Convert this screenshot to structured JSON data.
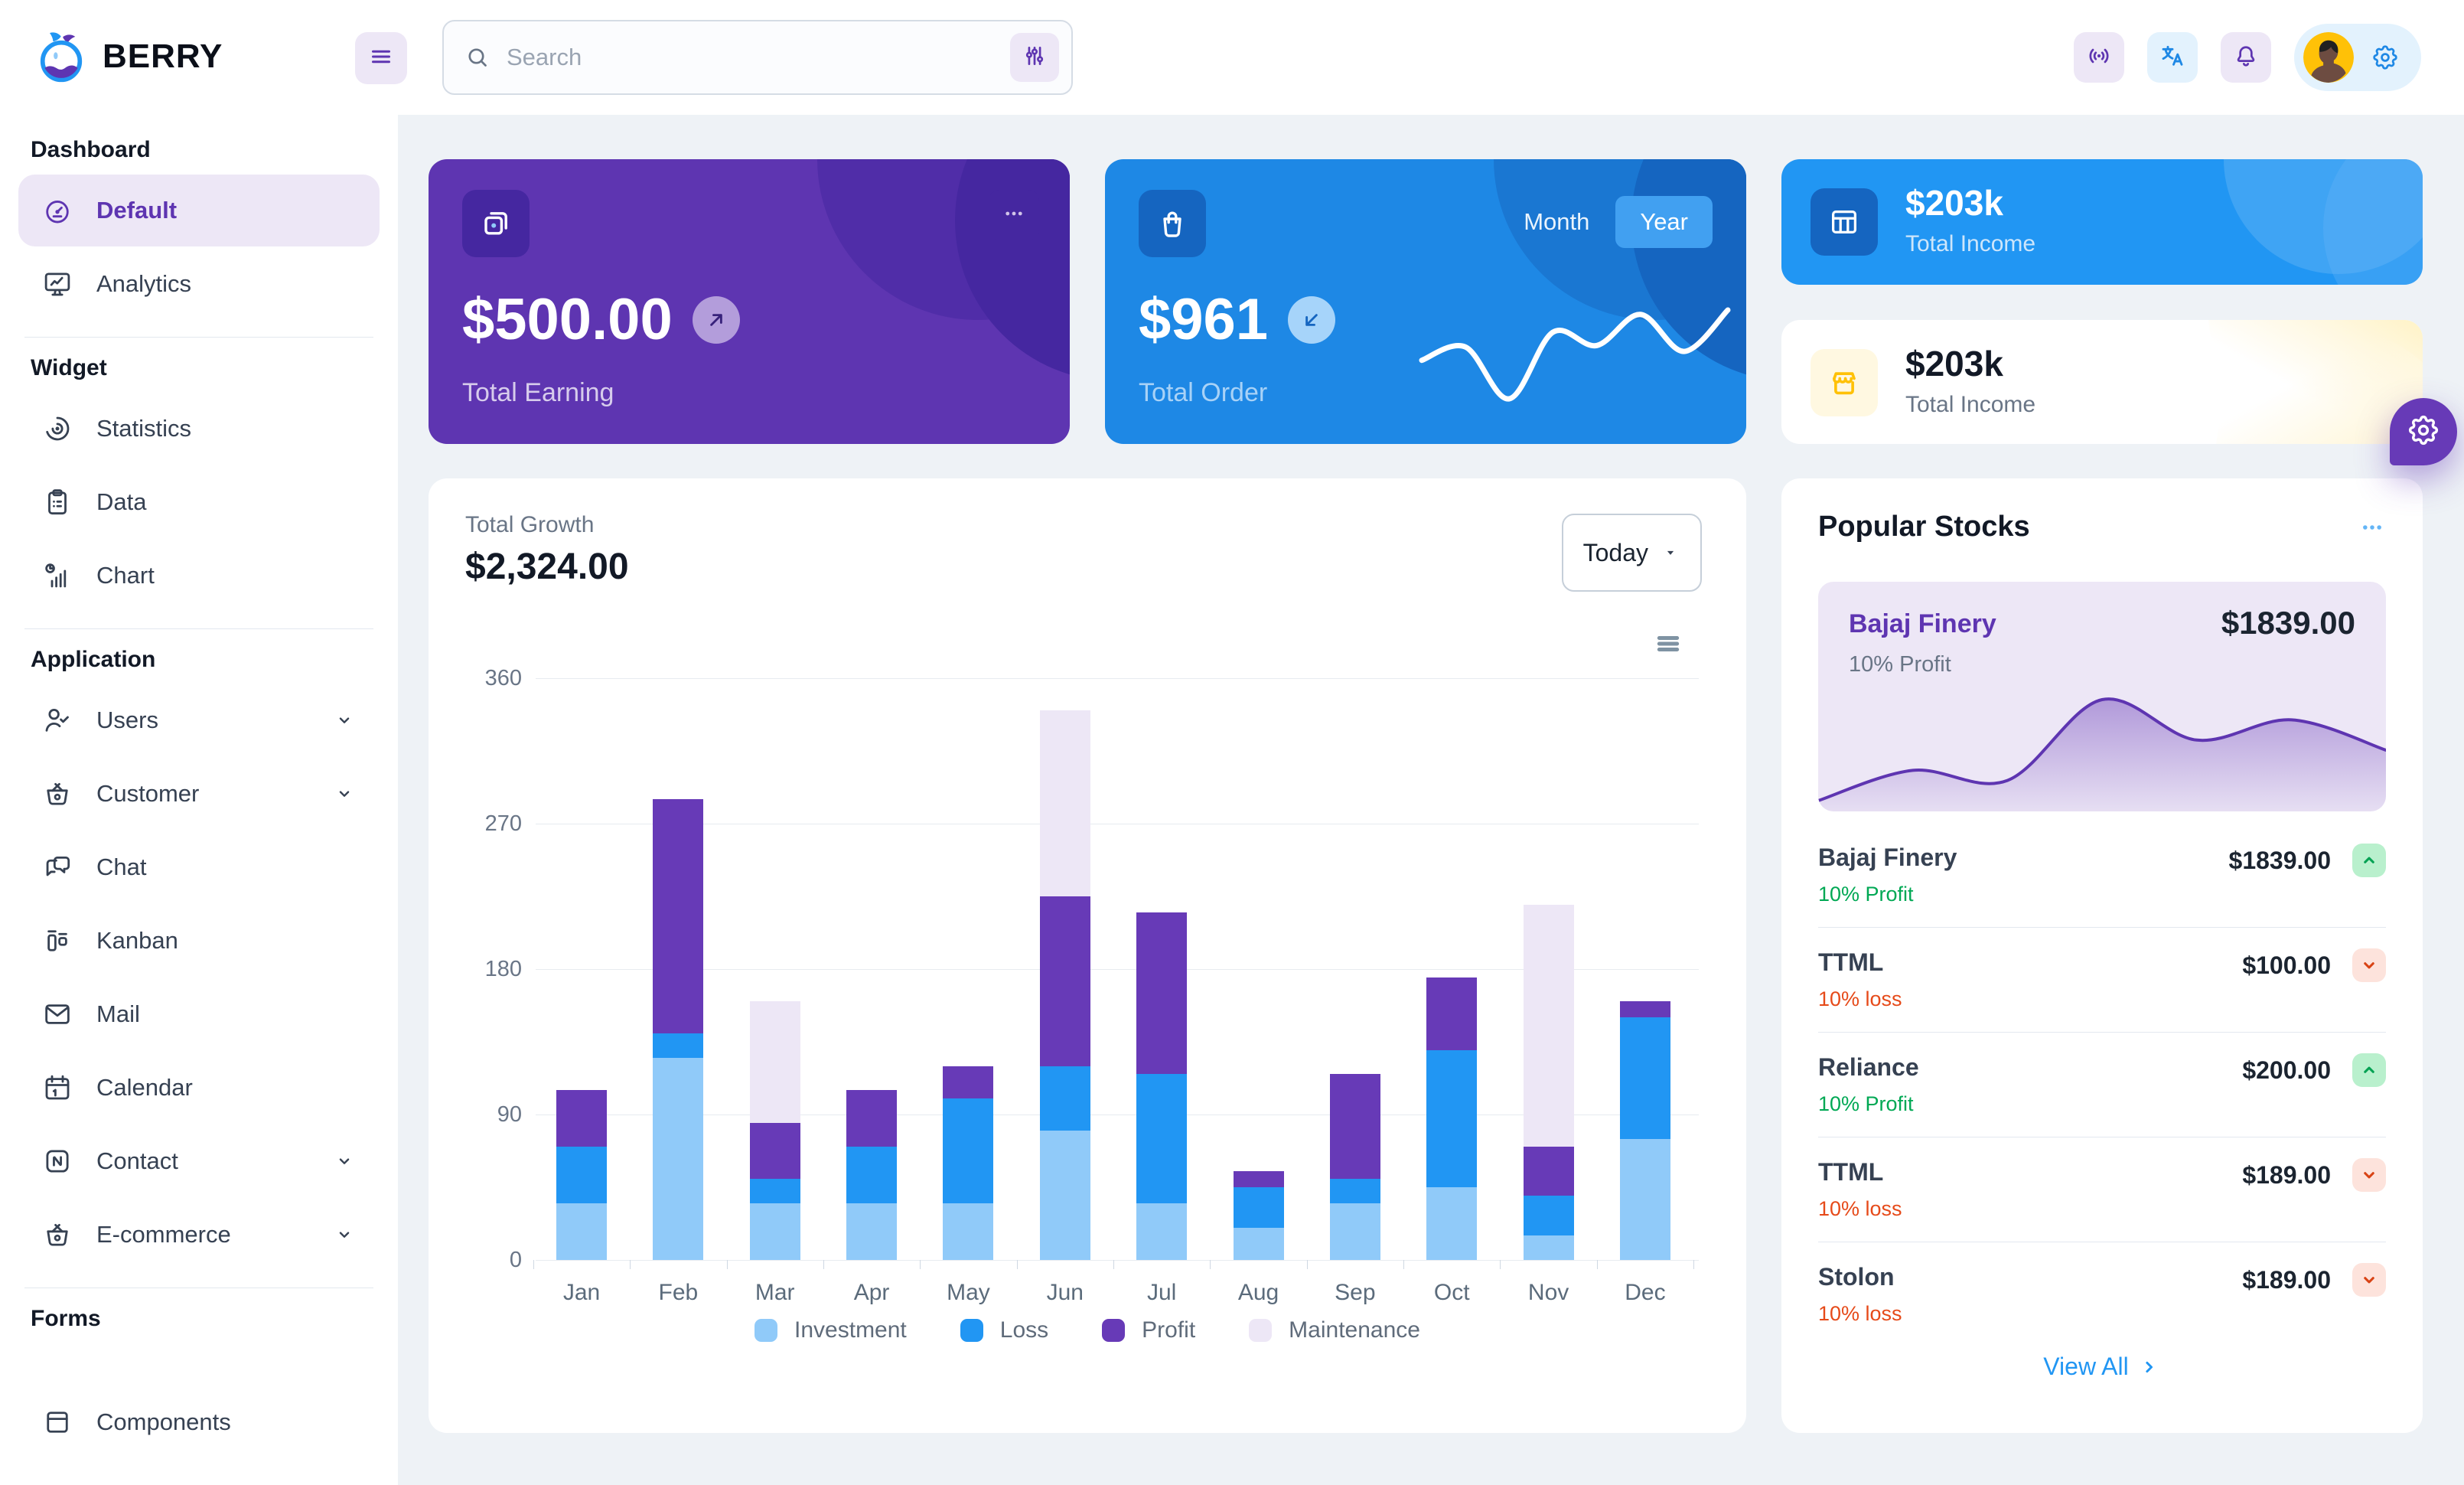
{
  "app": {
    "name": "BERRY"
  },
  "header": {
    "search_placeholder": "Search",
    "action_icons": [
      "menu",
      "search",
      "adjustments",
      "broadcast",
      "language",
      "bell",
      "avatar",
      "settings"
    ]
  },
  "sidebar": {
    "sections": [
      {
        "title": "Dashboard",
        "items": [
          {
            "id": "default",
            "label": "Default",
            "icon": "gauge",
            "selected": true
          },
          {
            "id": "analytics",
            "label": "Analytics",
            "icon": "monitor"
          }
        ]
      },
      {
        "title": "Widget",
        "items": [
          {
            "id": "statistics",
            "label": "Statistics",
            "icon": "disc"
          },
          {
            "id": "data",
            "label": "Data",
            "icon": "clipboard"
          },
          {
            "id": "chart",
            "label": "Chart",
            "icon": "chartbars"
          }
        ]
      },
      {
        "title": "Application",
        "items": [
          {
            "id": "users",
            "label": "Users",
            "icon": "usercheck",
            "chevron": true
          },
          {
            "id": "customer",
            "label": "Customer",
            "icon": "basket",
            "chevron": true
          },
          {
            "id": "chat",
            "label": "Chat",
            "icon": "chat"
          },
          {
            "id": "kanban",
            "label": "Kanban",
            "icon": "kanban"
          },
          {
            "id": "mail",
            "label": "Mail",
            "icon": "mail"
          },
          {
            "id": "calendar",
            "label": "Calendar",
            "icon": "calendar"
          },
          {
            "id": "contact",
            "label": "Contact",
            "icon": "nfc",
            "chevron": true
          },
          {
            "id": "e-commerce",
            "label": "E-commerce",
            "icon": "basket",
            "chevron": true
          }
        ]
      },
      {
        "title": "Forms",
        "items": [
          {
            "id": "components",
            "label": "Components",
            "icon": "box",
            "partial": true
          }
        ]
      }
    ]
  },
  "cards": {
    "earning": {
      "value": "$500.00",
      "label": "Total Earning"
    },
    "order": {
      "value": "$961",
      "label": "Total Order",
      "toggle_month": "Month",
      "toggle_year": "Year",
      "active_toggle": "Year",
      "sparkline": [
        35,
        44,
        9,
        54,
        45,
        66,
        41,
        69
      ]
    },
    "income_dark": {
      "value": "$203k",
      "label": "Total Income"
    },
    "income_light": {
      "value": "$203k",
      "label": "Total Income"
    }
  },
  "growth": {
    "label": "Total Growth",
    "value": "$2,324.00",
    "period": "Today"
  },
  "chart_data": {
    "type": "bar",
    "stacked": true,
    "title": "Total Growth",
    "categories": [
      "Jan",
      "Feb",
      "Mar",
      "Apr",
      "May",
      "Jun",
      "Jul",
      "Aug",
      "Sep",
      "Oct",
      "Nov",
      "Dec"
    ],
    "series": [
      {
        "name": "Investment",
        "color": "#90caf9",
        "values": [
          35,
          125,
          35,
          35,
          35,
          80,
          35,
          20,
          35,
          45,
          15,
          75
        ]
      },
      {
        "name": "Loss",
        "color": "#2196f3",
        "values": [
          35,
          15,
          15,
          35,
          65,
          40,
          80,
          25,
          15,
          85,
          25,
          75
        ]
      },
      {
        "name": "Profit",
        "color": "#673ab7",
        "values": [
          35,
          145,
          35,
          35,
          20,
          105,
          100,
          10,
          65,
          45,
          30,
          10
        ]
      },
      {
        "name": "Maintenance",
        "color": "#ede7f6",
        "values": [
          0,
          0,
          75,
          0,
          0,
          115,
          0,
          0,
          0,
          0,
          150,
          0
        ]
      }
    ],
    "ylim": [
      0,
      360
    ],
    "yticks": [
      0,
      90,
      180,
      270,
      360
    ],
    "legend_position": "bottom",
    "grid": "horizontal"
  },
  "stocks": {
    "title": "Popular Stocks",
    "featured": {
      "name": "Bajaj Finery",
      "price": "$1839.00",
      "change": "10% Profit",
      "area_values": [
        0,
        15,
        10,
        50,
        30,
        40,
        25
      ]
    },
    "rows": [
      {
        "name": "Bajaj Finery",
        "price": "$1839.00",
        "change": "10% Profit",
        "direction": "up"
      },
      {
        "name": "TTML",
        "price": "$100.00",
        "change": "10% loss",
        "direction": "down"
      },
      {
        "name": "Reliance",
        "price": "$200.00",
        "change": "10% Profit",
        "direction": "up"
      },
      {
        "name": "TTML",
        "price": "$189.00",
        "change": "10% loss",
        "direction": "down"
      },
      {
        "name": "Stolon",
        "price": "$189.00",
        "change": "10% loss",
        "direction": "down"
      }
    ],
    "view_all": "View All"
  },
  "colors": {
    "page_bg": "#eef2f6",
    "surface": "#ffffff",
    "purple": "#5e35b1",
    "purple_dark": "#4527a0",
    "purple_light": "#ede7f6",
    "blue": "#1e88e5",
    "blue_dark": "#1565c0",
    "blue_bright": "#2196f3",
    "blue_light": "#90caf9",
    "success": "#00a854",
    "loss": "#e64a19",
    "warning": "#ffc107"
  }
}
